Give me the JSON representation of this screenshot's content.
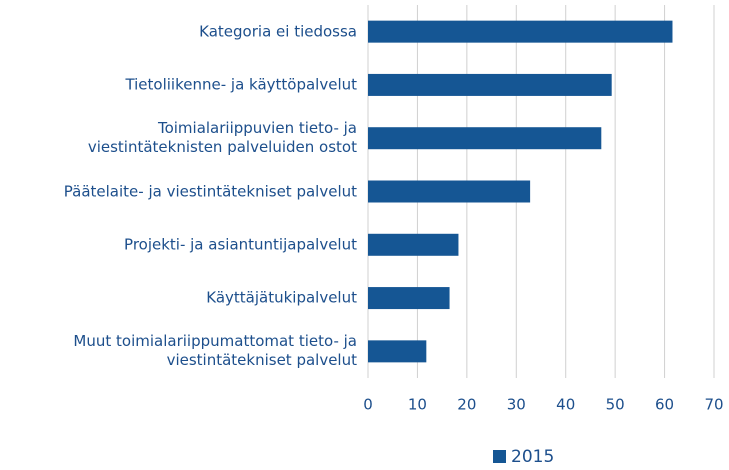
{
  "chart_data": {
    "type": "bar",
    "orientation": "horizontal",
    "categories": [
      "Kategoria ei tiedossa",
      "Tietoliikenne- ja käyttöpalvelut",
      "Toimialariippuvien tieto- ja\nviestintäteknisten palveluiden ostot",
      "Päätelaite- ja viestintätekniset palvelut",
      "Projekti- ja asiantuntijapalvelut",
      "Käyttäjätukipalvelut",
      "Muut toimialariippumattomat tieto- ja\nviestintätekniset palvelut"
    ],
    "series": [
      {
        "name": "2015",
        "color": "#155694",
        "values": [
          61.6,
          49.3,
          47.2,
          32.8,
          18.3,
          16.5,
          11.8
        ]
      }
    ],
    "xlim": [
      0,
      70
    ],
    "xticks": [
      0,
      10,
      20,
      30,
      40,
      50,
      60,
      70
    ],
    "grid": true,
    "legend": "bottom"
  }
}
